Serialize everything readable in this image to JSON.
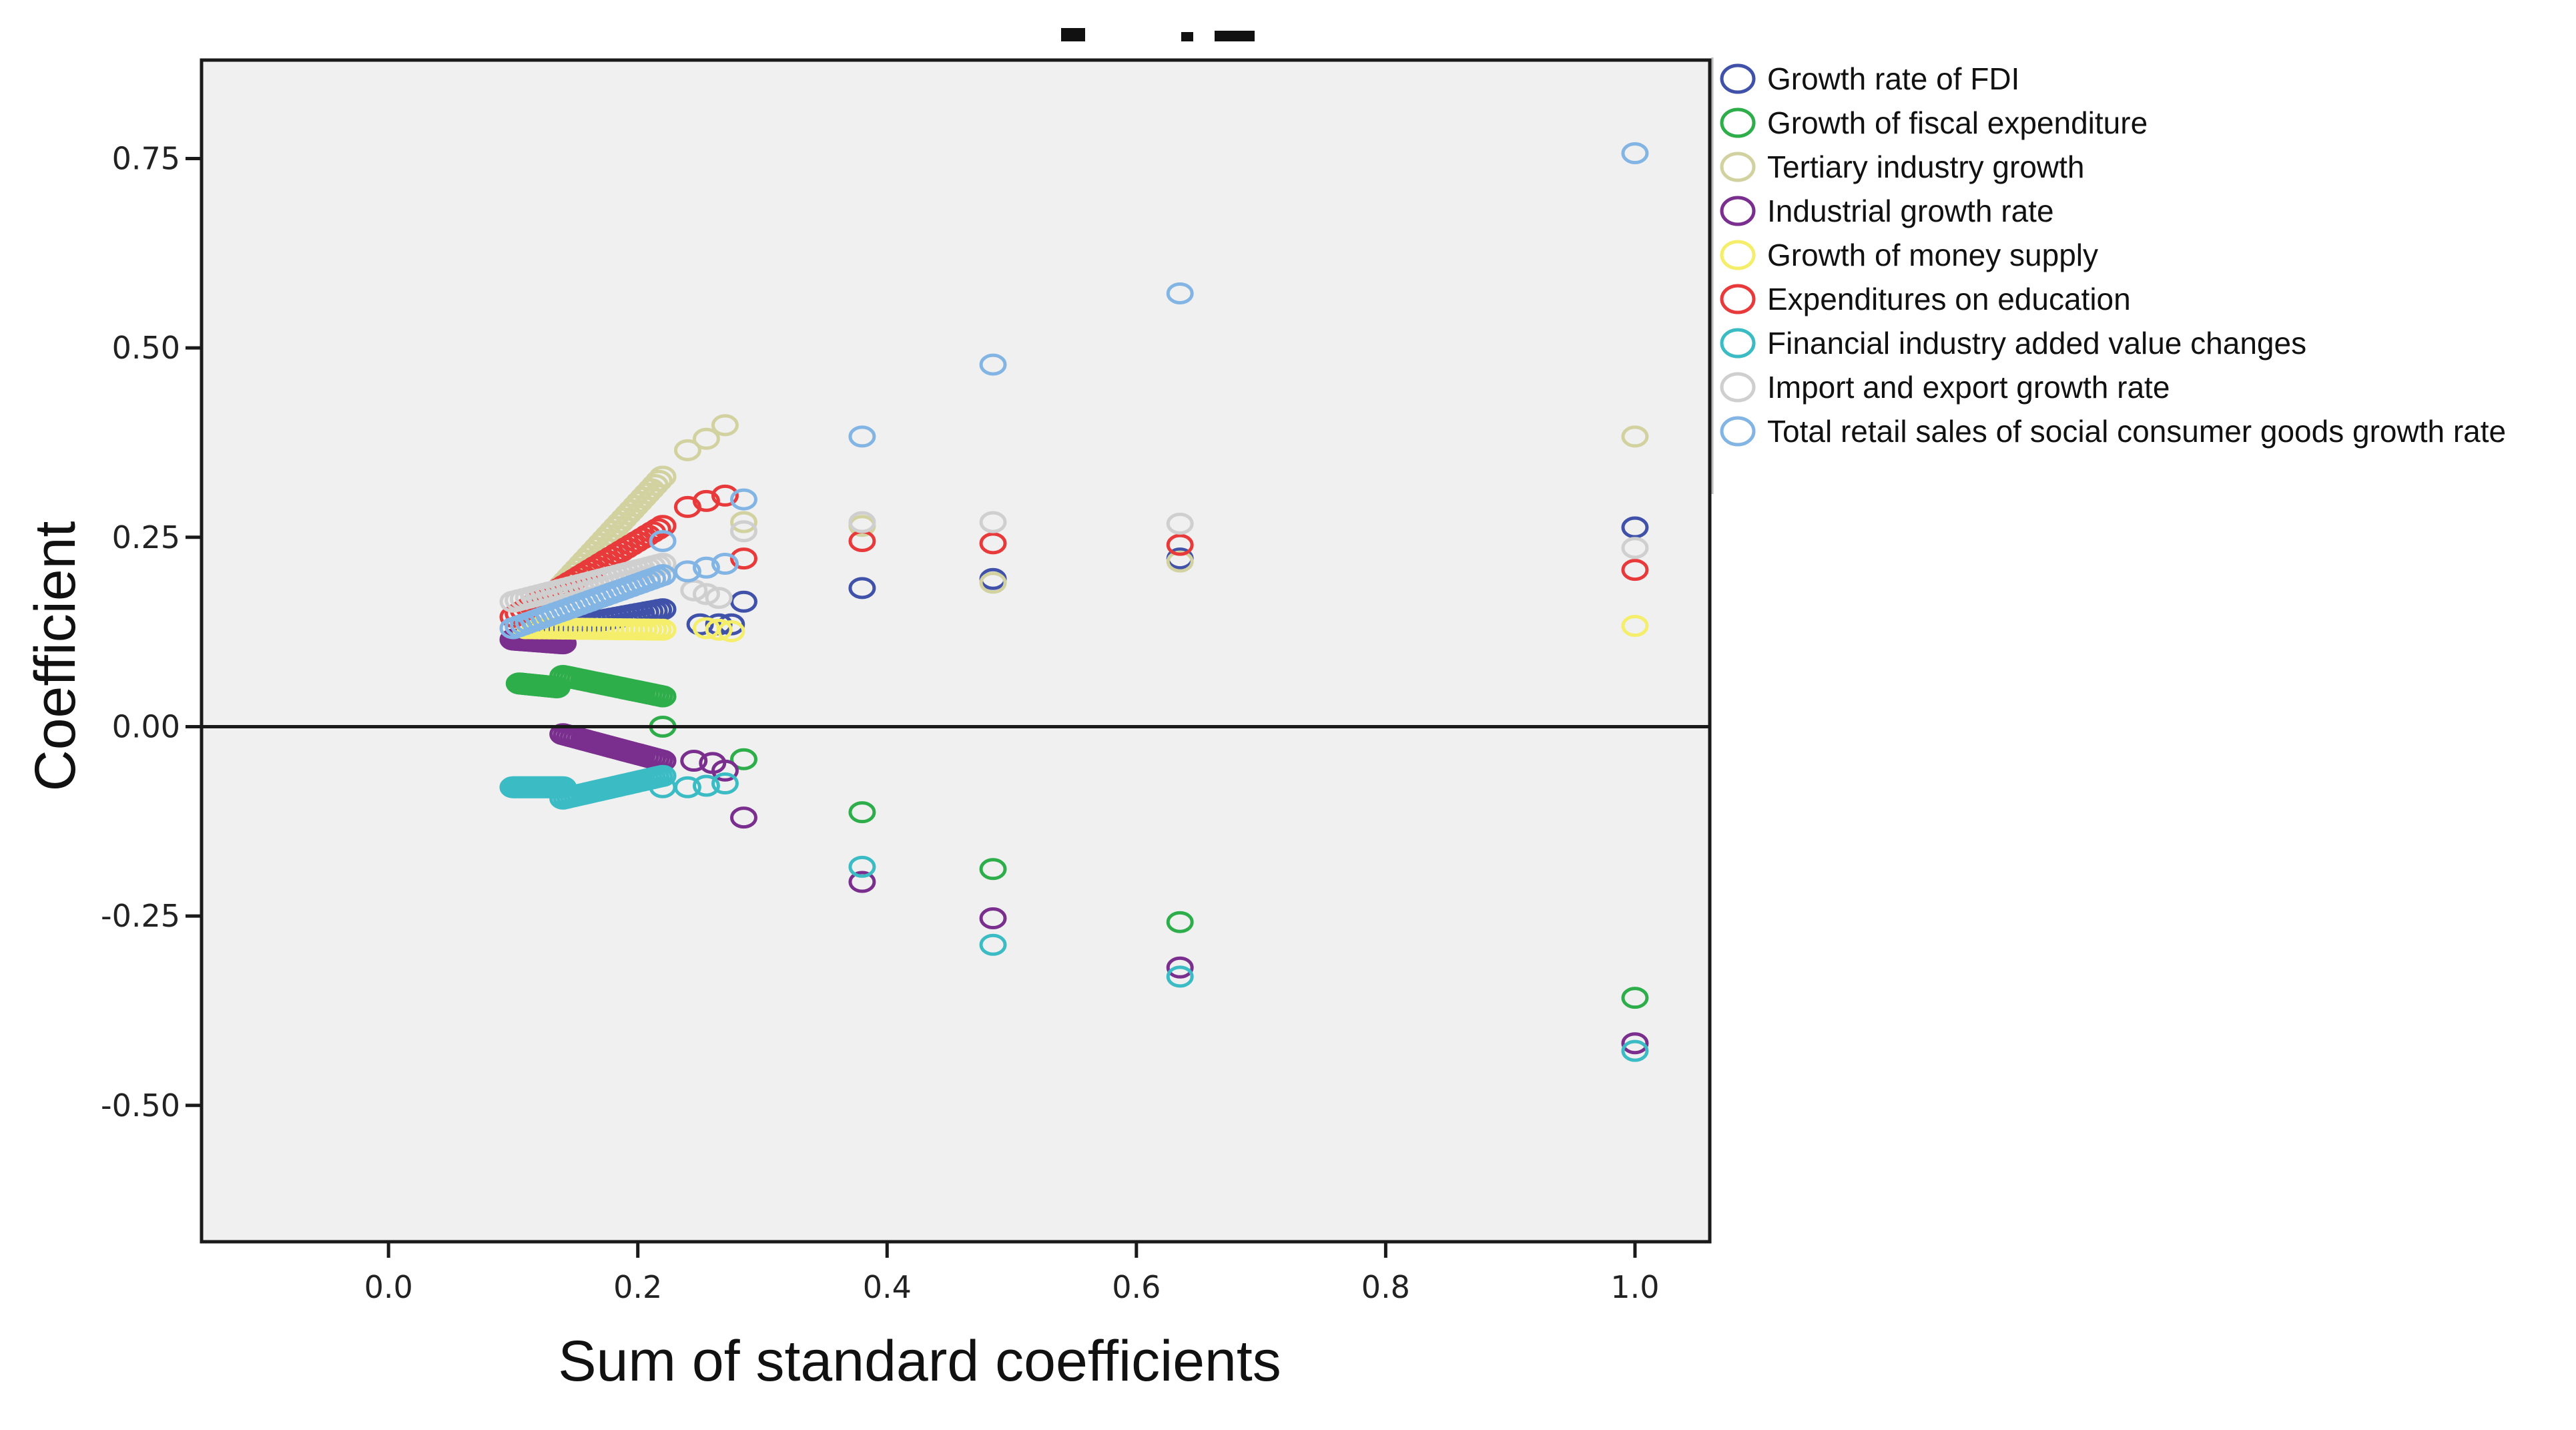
{
  "chart_data": {
    "type": "scatter",
    "title": "",
    "xlabel": "Sum of standard coefficients",
    "ylabel": "Coefficient",
    "xlim": [
      -0.15,
      1.06
    ],
    "ylim": [
      -0.68,
      0.88
    ],
    "xticks": [
      0.0,
      0.2,
      0.4,
      0.6,
      0.8,
      1.0
    ],
    "xtick_labels": [
      "0.0",
      "0.2",
      "0.4",
      "0.6",
      "0.8",
      "1.0"
    ],
    "yticks": [
      0.75,
      0.5,
      0.25,
      0.0,
      -0.25,
      -0.5
    ],
    "ytick_labels": [
      "0.75",
      "0.50",
      "0.25",
      "0.00",
      "-0.25",
      "-0.50"
    ],
    "reference_line_y": 0,
    "grid": false,
    "legend_position": "right",
    "series": [
      {
        "name": "Growth rate of FDI",
        "color": "#3f51a8",
        "ridge": [
          0.12,
          0.22,
          0.125,
          0.155
        ],
        "points": [
          [
            0.25,
            0.135
          ],
          [
            0.265,
            0.135
          ],
          [
            0.275,
            0.135
          ],
          [
            0.285,
            0.165
          ],
          [
            0.38,
            0.183
          ],
          [
            0.485,
            0.195
          ],
          [
            0.635,
            0.222
          ],
          [
            1.0,
            0.263
          ]
        ]
      },
      {
        "name": "Growth of fiscal expenditure",
        "color": "#2eae4a",
        "ridge": [
          0.105,
          0.135,
          0.057,
          0.052
        ],
        "ridge2": [
          0.14,
          0.22,
          0.067,
          0.04
        ],
        "points": [
          [
            0.22,
            0.0
          ],
          [
            0.285,
            -0.043
          ],
          [
            0.38,
            -0.113
          ],
          [
            0.485,
            -0.188
          ],
          [
            0.635,
            -0.258
          ],
          [
            1.0,
            -0.358
          ]
        ]
      },
      {
        "name": "Tertiary industry growth",
        "color": "#d2d2a0",
        "ridge": [
          0.13,
          0.22,
          0.17,
          0.33
        ],
        "points": [
          [
            0.24,
            0.365
          ],
          [
            0.255,
            0.38
          ],
          [
            0.27,
            0.398
          ],
          [
            0.285,
            0.27
          ],
          [
            0.38,
            0.265
          ],
          [
            0.485,
            0.19
          ],
          [
            0.635,
            0.218
          ],
          [
            1.0,
            0.383
          ]
        ]
      },
      {
        "name": "Industrial growth rate",
        "color": "#7a2e8e",
        "ridge": [
          0.1,
          0.14,
          0.115,
          0.11
        ],
        "ridge2": [
          0.14,
          0.22,
          -0.01,
          -0.045
        ],
        "points": [
          [
            0.245,
            -0.045
          ],
          [
            0.26,
            -0.048
          ],
          [
            0.27,
            -0.058
          ],
          [
            0.285,
            -0.12
          ],
          [
            0.38,
            -0.205
          ],
          [
            0.485,
            -0.253
          ],
          [
            0.635,
            -0.318
          ],
          [
            1.0,
            -0.418
          ]
        ]
      },
      {
        "name": "Growth of money supply",
        "color": "#f4ee6a",
        "ridge": [
          0.11,
          0.22,
          0.13,
          0.128
        ],
        "points": [
          [
            0.255,
            0.13
          ],
          [
            0.265,
            0.128
          ],
          [
            0.275,
            0.126
          ],
          [
            1.0,
            0.133
          ]
        ]
      },
      {
        "name": "Expenditures on education",
        "color": "#e83a3a",
        "ridge": [
          0.1,
          0.22,
          0.145,
          0.265
        ],
        "points": [
          [
            0.24,
            0.29
          ],
          [
            0.255,
            0.298
          ],
          [
            0.27,
            0.305
          ],
          [
            0.285,
            0.222
          ],
          [
            0.38,
            0.245
          ],
          [
            0.485,
            0.242
          ],
          [
            0.635,
            0.24
          ],
          [
            1.0,
            0.207
          ]
        ]
      },
      {
        "name": "Financial industry added value changes",
        "color": "#3bbcc4",
        "ridge": [
          0.1,
          0.14,
          -0.08,
          -0.08
        ],
        "ridge2": [
          0.14,
          0.22,
          -0.095,
          -0.065
        ],
        "points": [
          [
            0.22,
            -0.08
          ],
          [
            0.24,
            -0.08
          ],
          [
            0.255,
            -0.078
          ],
          [
            0.27,
            -0.075
          ],
          [
            0.38,
            -0.185
          ],
          [
            0.485,
            -0.288
          ],
          [
            0.635,
            -0.33
          ],
          [
            1.0,
            -0.428
          ]
        ]
      },
      {
        "name": "Import and export growth rate",
        "color": "#cfcfcf",
        "ridge": [
          0.1,
          0.22,
          0.165,
          0.215
        ],
        "points": [
          [
            0.245,
            0.18
          ],
          [
            0.255,
            0.175
          ],
          [
            0.265,
            0.17
          ],
          [
            0.285,
            0.258
          ],
          [
            0.38,
            0.27
          ],
          [
            0.485,
            0.27
          ],
          [
            0.635,
            0.268
          ],
          [
            1.0,
            0.236
          ]
        ]
      },
      {
        "name": "Total retail sales of social consumer goods growth rate",
        "color": "#82b4e4",
        "ridge": [
          0.1,
          0.22,
          0.13,
          0.2
        ],
        "points": [
          [
            0.22,
            0.245
          ],
          [
            0.24,
            0.205
          ],
          [
            0.255,
            0.21
          ],
          [
            0.27,
            0.215
          ],
          [
            0.285,
            0.3
          ],
          [
            0.38,
            0.383
          ],
          [
            0.485,
            0.478
          ],
          [
            0.635,
            0.572
          ],
          [
            1.0,
            0.757
          ]
        ]
      }
    ]
  }
}
